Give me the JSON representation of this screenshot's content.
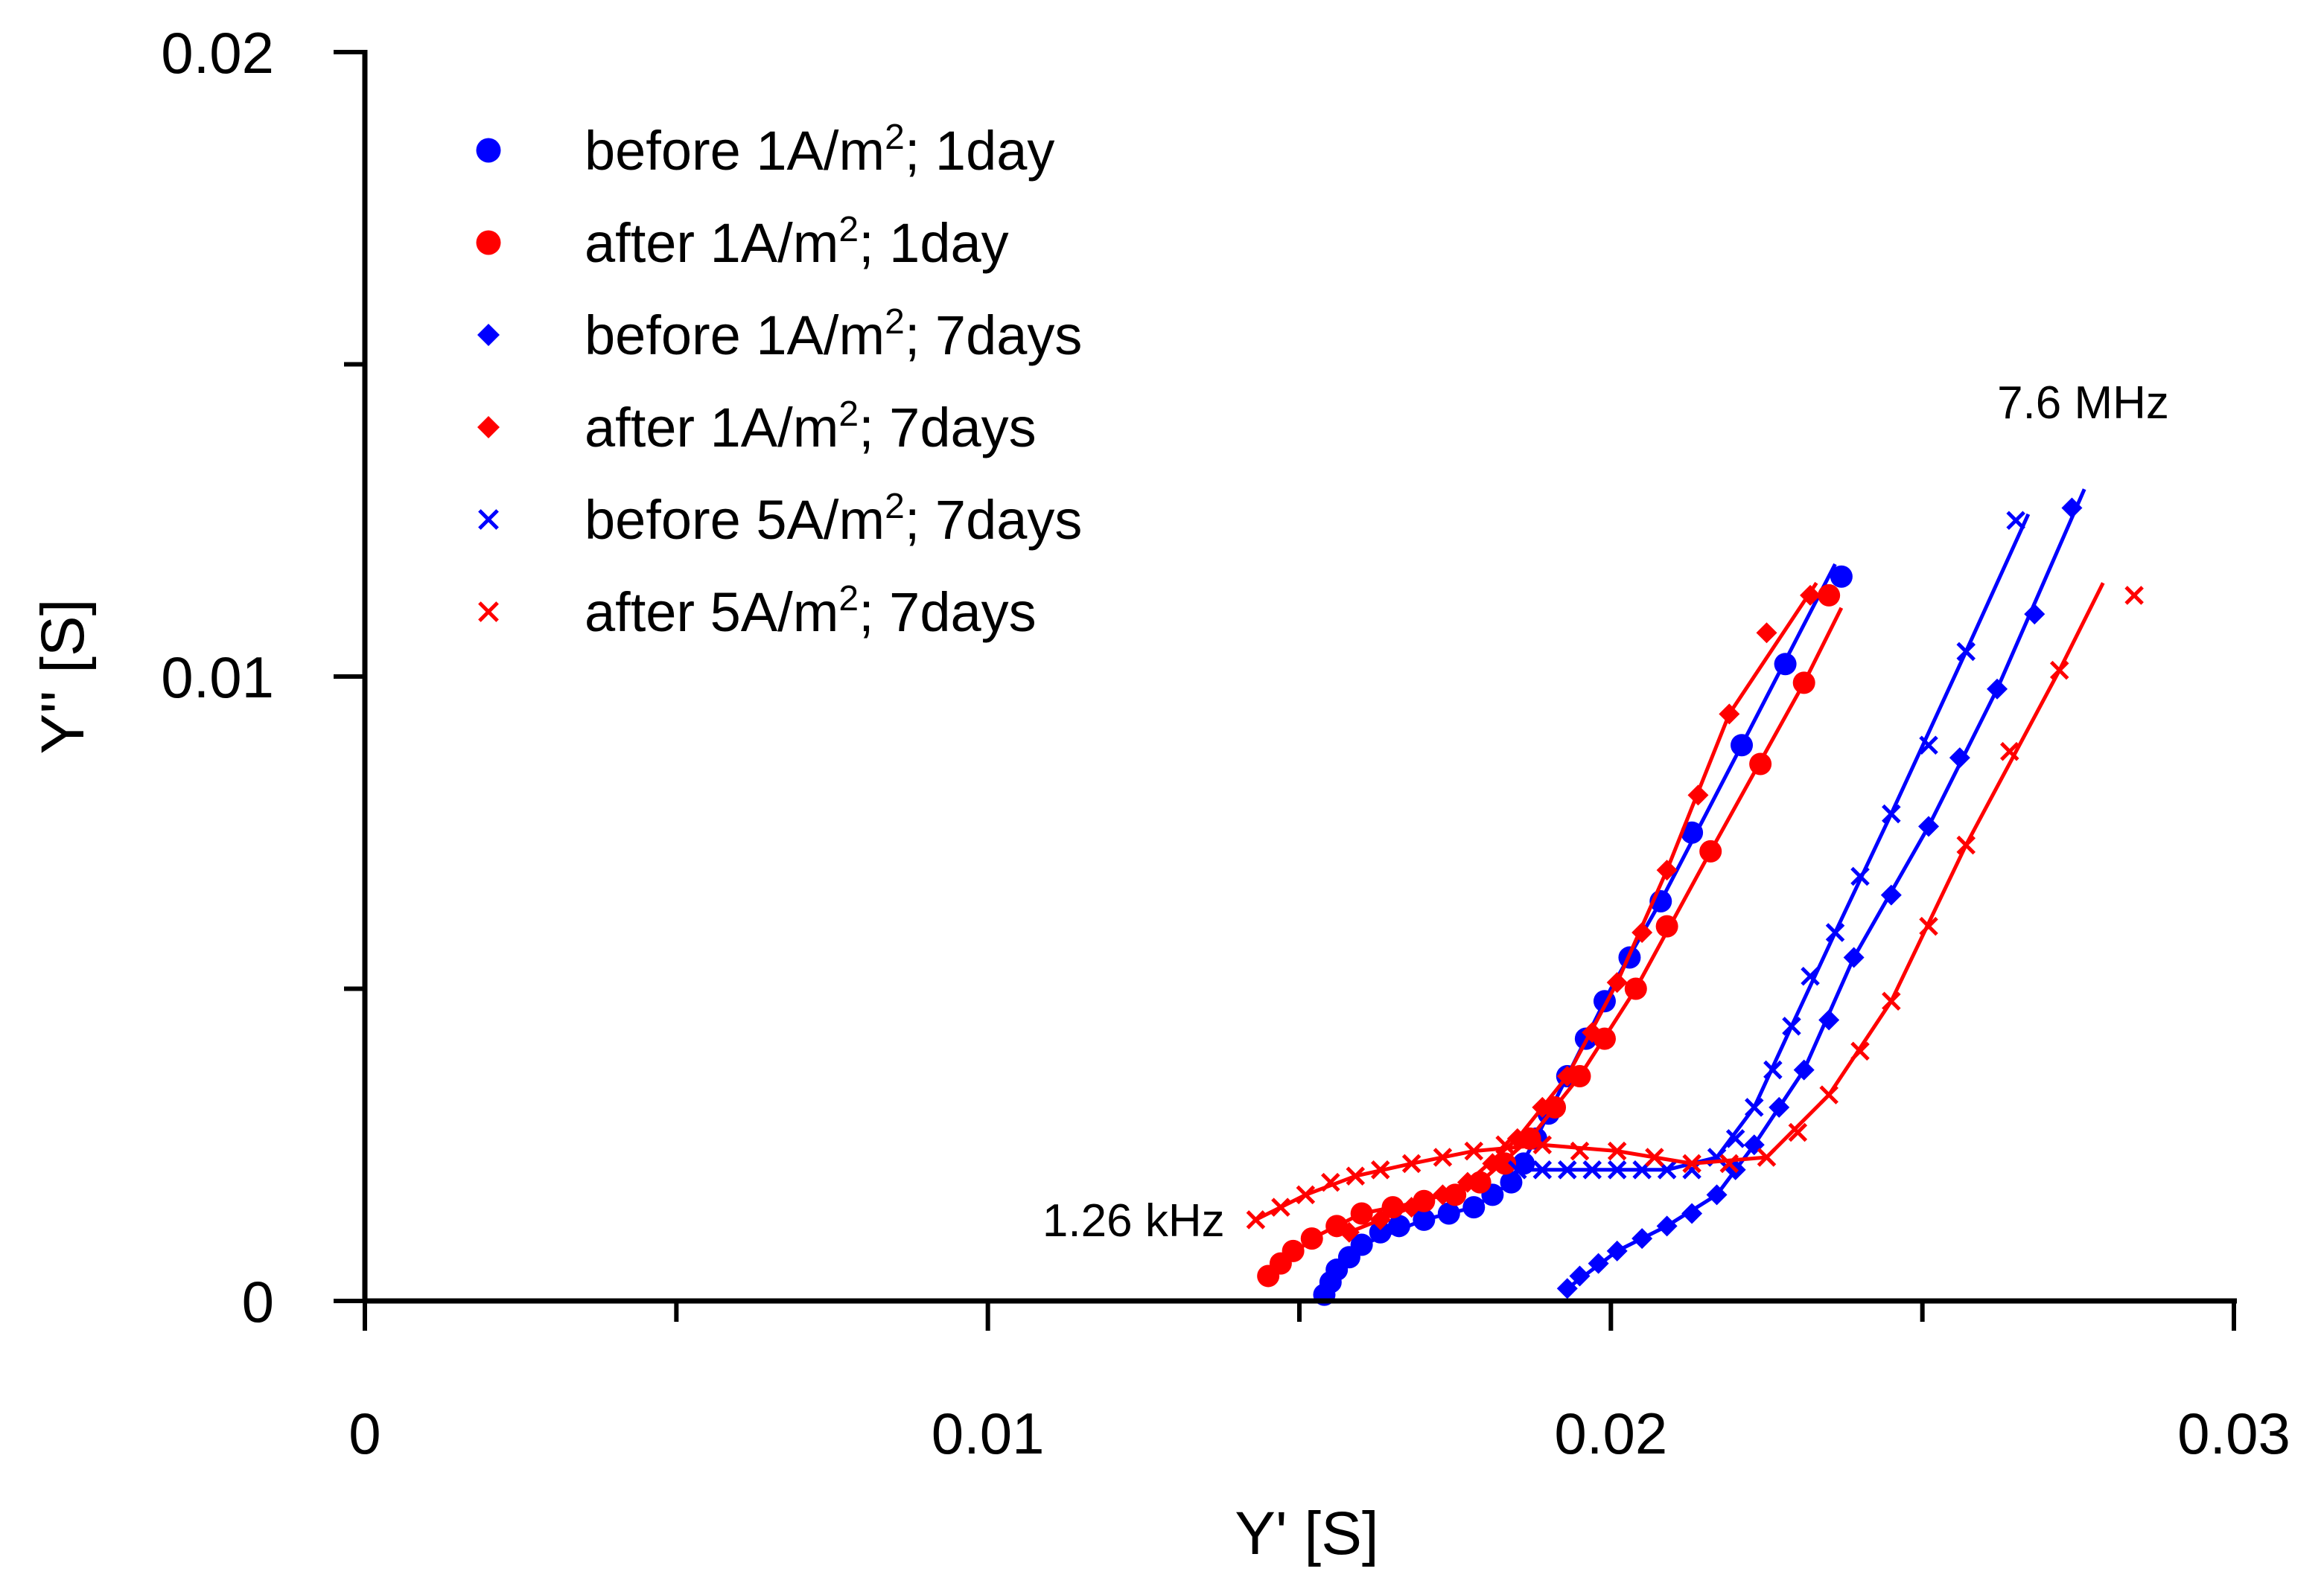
{
  "chart_data": {
    "type": "scatter",
    "title": "",
    "xlabel": "Y' [S]",
    "ylabel": "Y'' [S]",
    "xlim": [
      0,
      0.03
    ],
    "ylim": [
      0,
      0.02
    ],
    "x_ticks": [
      {
        "value": 0,
        "label": "0"
      },
      {
        "value": 0.01,
        "label": "0.01"
      },
      {
        "value": 0.02,
        "label": "0.02"
      },
      {
        "value": 0.03,
        "label": "0.03"
      }
    ],
    "y_ticks": [
      {
        "value": 0,
        "label": "0"
      },
      {
        "value": 0.01,
        "label": "0.01"
      },
      {
        "value": 0.02,
        "label": "0.02"
      }
    ],
    "x_minor_ticks": [
      0.005,
      0.015,
      0.025
    ],
    "y_minor_ticks": [
      0.005,
      0.015
    ],
    "grid": false,
    "legend_position": "top-left",
    "annotations": [
      {
        "text": "1.26 kHz",
        "x": 0.0138,
        "y": 0.0013,
        "align": "end"
      },
      {
        "text": "7.6 MHz",
        "x": 0.0262,
        "y": 0.0144,
        "align": "start"
      }
    ],
    "series": [
      {
        "name": "before 1A/m²; 1day",
        "legend_main": "before 1A/m",
        "legend_sup": "2",
        "legend_tail": "; 1day",
        "color": "#0000ff",
        "marker": "circle",
        "points": [
          [
            0.0154,
            0.0001
          ],
          [
            0.0155,
            0.0003
          ],
          [
            0.0156,
            0.0005
          ],
          [
            0.0158,
            0.0007
          ],
          [
            0.016,
            0.0009
          ],
          [
            0.0163,
            0.0011
          ],
          [
            0.0166,
            0.0012
          ],
          [
            0.017,
            0.0013
          ],
          [
            0.0174,
            0.0014
          ],
          [
            0.0178,
            0.0015
          ],
          [
            0.0181,
            0.0017
          ],
          [
            0.0184,
            0.0019
          ],
          [
            0.0186,
            0.0022
          ],
          [
            0.0188,
            0.0026
          ],
          [
            0.019,
            0.003
          ],
          [
            0.0193,
            0.0036
          ],
          [
            0.0196,
            0.0042
          ],
          [
            0.0199,
            0.0048
          ],
          [
            0.0203,
            0.0055
          ],
          [
            0.0208,
            0.0064
          ],
          [
            0.0213,
            0.0075
          ],
          [
            0.0221,
            0.0089
          ],
          [
            0.0228,
            0.0102
          ],
          [
            0.0237,
            0.0116
          ]
        ],
        "fit": [
          [
            0.0154,
            0.0001
          ],
          [
            0.016,
            0.0009
          ],
          [
            0.017,
            0.0013
          ],
          [
            0.0178,
            0.0015
          ],
          [
            0.0184,
            0.0019
          ],
          [
            0.0188,
            0.0026
          ],
          [
            0.0193,
            0.0036
          ],
          [
            0.02,
            0.005
          ],
          [
            0.0208,
            0.0064
          ],
          [
            0.0221,
            0.0089
          ],
          [
            0.0236,
            0.0118
          ]
        ]
      },
      {
        "name": "after 1A/m²; 1day",
        "legend_main": "after 1A/m",
        "legend_sup": "2",
        "legend_tail": "; 1day",
        "color": "#ff0000",
        "marker": "circle",
        "points": [
          [
            0.0145,
            0.0004
          ],
          [
            0.0147,
            0.0006
          ],
          [
            0.0149,
            0.0008
          ],
          [
            0.0152,
            0.001
          ],
          [
            0.0156,
            0.0012
          ],
          [
            0.016,
            0.0014
          ],
          [
            0.0165,
            0.0015
          ],
          [
            0.017,
            0.0016
          ],
          [
            0.0175,
            0.0017
          ],
          [
            0.0179,
            0.0019
          ],
          [
            0.0183,
            0.0022
          ],
          [
            0.0187,
            0.0026
          ],
          [
            0.0191,
            0.0031
          ],
          [
            0.0195,
            0.0036
          ],
          [
            0.0199,
            0.0042
          ],
          [
            0.0204,
            0.005
          ],
          [
            0.0209,
            0.006
          ],
          [
            0.0216,
            0.0072
          ],
          [
            0.0224,
            0.0086
          ],
          [
            0.0231,
            0.0099
          ],
          [
            0.0235,
            0.0113
          ]
        ],
        "fit": [
          [
            0.0145,
            0.0004
          ],
          [
            0.0152,
            0.001
          ],
          [
            0.016,
            0.0014
          ],
          [
            0.017,
            0.0016
          ],
          [
            0.0179,
            0.0019
          ],
          [
            0.0187,
            0.0026
          ],
          [
            0.0195,
            0.0036
          ],
          [
            0.0204,
            0.005
          ],
          [
            0.0216,
            0.0072
          ],
          [
            0.0231,
            0.0099
          ],
          [
            0.0237,
            0.0111
          ]
        ]
      },
      {
        "name": "before 1A/m²; 7days",
        "legend_main": "before 1A/m",
        "legend_sup": "2",
        "legend_tail": "; 7days",
        "color": "#0000ff",
        "marker": "diamond",
        "points": [
          [
            0.0193,
            0.0002
          ],
          [
            0.0195,
            0.0004
          ],
          [
            0.0198,
            0.0006
          ],
          [
            0.0201,
            0.0008
          ],
          [
            0.0205,
            0.001
          ],
          [
            0.0209,
            0.0012
          ],
          [
            0.0213,
            0.0014
          ],
          [
            0.0217,
            0.0017
          ],
          [
            0.022,
            0.0021
          ],
          [
            0.0223,
            0.0025
          ],
          [
            0.0227,
            0.0031
          ],
          [
            0.0231,
            0.0037
          ],
          [
            0.0235,
            0.0045
          ],
          [
            0.0239,
            0.0055
          ],
          [
            0.0245,
            0.0065
          ],
          [
            0.0251,
            0.0076
          ],
          [
            0.0256,
            0.0087
          ],
          [
            0.0262,
            0.0098
          ],
          [
            0.0268,
            0.011
          ],
          [
            0.0274,
            0.0127
          ]
        ],
        "fit": [
          [
            0.0193,
            0.0002
          ],
          [
            0.0201,
            0.0008
          ],
          [
            0.0209,
            0.0012
          ],
          [
            0.0217,
            0.0017
          ],
          [
            0.0223,
            0.0025
          ],
          [
            0.0231,
            0.0037
          ],
          [
            0.0239,
            0.0055
          ],
          [
            0.0251,
            0.0076
          ],
          [
            0.0262,
            0.0098
          ],
          [
            0.0276,
            0.013
          ]
        ]
      },
      {
        "name": "after 1A/m²; 7days",
        "legend_main": "after 1A/m",
        "legend_sup": "2",
        "legend_tail": "; 7days",
        "color": "#ff0000",
        "marker": "diamond",
        "points": [
          [
            0.0158,
            0.0011
          ],
          [
            0.0163,
            0.0013
          ],
          [
            0.0168,
            0.0015
          ],
          [
            0.0173,
            0.0017
          ],
          [
            0.0177,
            0.0019
          ],
          [
            0.0181,
            0.0022
          ],
          [
            0.0185,
            0.0026
          ],
          [
            0.0189,
            0.0031
          ],
          [
            0.0193,
            0.0036
          ],
          [
            0.0197,
            0.0043
          ],
          [
            0.0201,
            0.0051
          ],
          [
            0.0205,
            0.0059
          ],
          [
            0.0209,
            0.0069
          ],
          [
            0.0214,
            0.0081
          ],
          [
            0.0219,
            0.0094
          ],
          [
            0.0225,
            0.0107
          ],
          [
            0.0232,
            0.0113
          ]
        ],
        "fit": [
          [
            0.0158,
            0.0011
          ],
          [
            0.0168,
            0.0015
          ],
          [
            0.0177,
            0.0019
          ],
          [
            0.0185,
            0.0026
          ],
          [
            0.0193,
            0.0036
          ],
          [
            0.0201,
            0.0051
          ],
          [
            0.0209,
            0.0069
          ],
          [
            0.0219,
            0.0094
          ],
          [
            0.0233,
            0.0115
          ]
        ]
      },
      {
        "name": "before 5A/m²; 7days",
        "legend_main": "before 5A/m",
        "legend_sup": "2",
        "legend_tail": "; 7days",
        "color": "#0000ff",
        "marker": "x",
        "points": [
          [
            0.0185,
            0.0021
          ],
          [
            0.0189,
            0.0021
          ],
          [
            0.0193,
            0.0021
          ],
          [
            0.0197,
            0.0021
          ],
          [
            0.0201,
            0.0021
          ],
          [
            0.0205,
            0.0021
          ],
          [
            0.0209,
            0.0021
          ],
          [
            0.0213,
            0.0021
          ],
          [
            0.0217,
            0.0023
          ],
          [
            0.022,
            0.0026
          ],
          [
            0.0223,
            0.0031
          ],
          [
            0.0226,
            0.0037
          ],
          [
            0.0229,
            0.0044
          ],
          [
            0.0232,
            0.0052
          ],
          [
            0.0236,
            0.0059
          ],
          [
            0.024,
            0.0068
          ],
          [
            0.0245,
            0.0078
          ],
          [
            0.0251,
            0.0089
          ],
          [
            0.0257,
            0.0104
          ],
          [
            0.0265,
            0.0125
          ]
        ],
        "fit": [
          [
            0.0185,
            0.0021
          ],
          [
            0.0193,
            0.0021
          ],
          [
            0.0201,
            0.0021
          ],
          [
            0.0209,
            0.0021
          ],
          [
            0.0217,
            0.0023
          ],
          [
            0.0223,
            0.0031
          ],
          [
            0.0229,
            0.0044
          ],
          [
            0.0236,
            0.0059
          ],
          [
            0.0245,
            0.0078
          ],
          [
            0.0257,
            0.0104
          ],
          [
            0.0267,
            0.0126
          ]
        ]
      },
      {
        "name": "after 5A/m²; 7days",
        "legend_main": "after 5A/m",
        "legend_sup": "2",
        "legend_tail": "; 7days",
        "color": "#ff0000",
        "marker": "x",
        "points": [
          [
            0.0143,
            0.0013
          ],
          [
            0.0147,
            0.0015
          ],
          [
            0.0151,
            0.0017
          ],
          [
            0.0155,
            0.0019
          ],
          [
            0.0159,
            0.002
          ],
          [
            0.0163,
            0.0021
          ],
          [
            0.0168,
            0.0022
          ],
          [
            0.0173,
            0.0023
          ],
          [
            0.0178,
            0.0024
          ],
          [
            0.0183,
            0.0025
          ],
          [
            0.0189,
            0.0025
          ],
          [
            0.0195,
            0.0024
          ],
          [
            0.0201,
            0.0024
          ],
          [
            0.0207,
            0.0023
          ],
          [
            0.0213,
            0.0022
          ],
          [
            0.0219,
            0.0022
          ],
          [
            0.0225,
            0.0023
          ],
          [
            0.023,
            0.0027
          ],
          [
            0.0235,
            0.0033
          ],
          [
            0.024,
            0.004
          ],
          [
            0.0245,
            0.0048
          ],
          [
            0.0251,
            0.006
          ],
          [
            0.0257,
            0.0073
          ],
          [
            0.0264,
            0.0088
          ],
          [
            0.0272,
            0.0101
          ],
          [
            0.0284,
            0.0113
          ]
        ],
        "fit": [
          [
            0.0143,
            0.0013
          ],
          [
            0.0151,
            0.0017
          ],
          [
            0.0159,
            0.002
          ],
          [
            0.0168,
            0.0022
          ],
          [
            0.0178,
            0.0024
          ],
          [
            0.0189,
            0.0025
          ],
          [
            0.0201,
            0.0024
          ],
          [
            0.0213,
            0.0022
          ],
          [
            0.0225,
            0.0023
          ],
          [
            0.0235,
            0.0033
          ],
          [
            0.0245,
            0.0048
          ],
          [
            0.0257,
            0.0073
          ],
          [
            0.0272,
            0.0101
          ],
          [
            0.0279,
            0.0115
          ]
        ]
      }
    ]
  }
}
